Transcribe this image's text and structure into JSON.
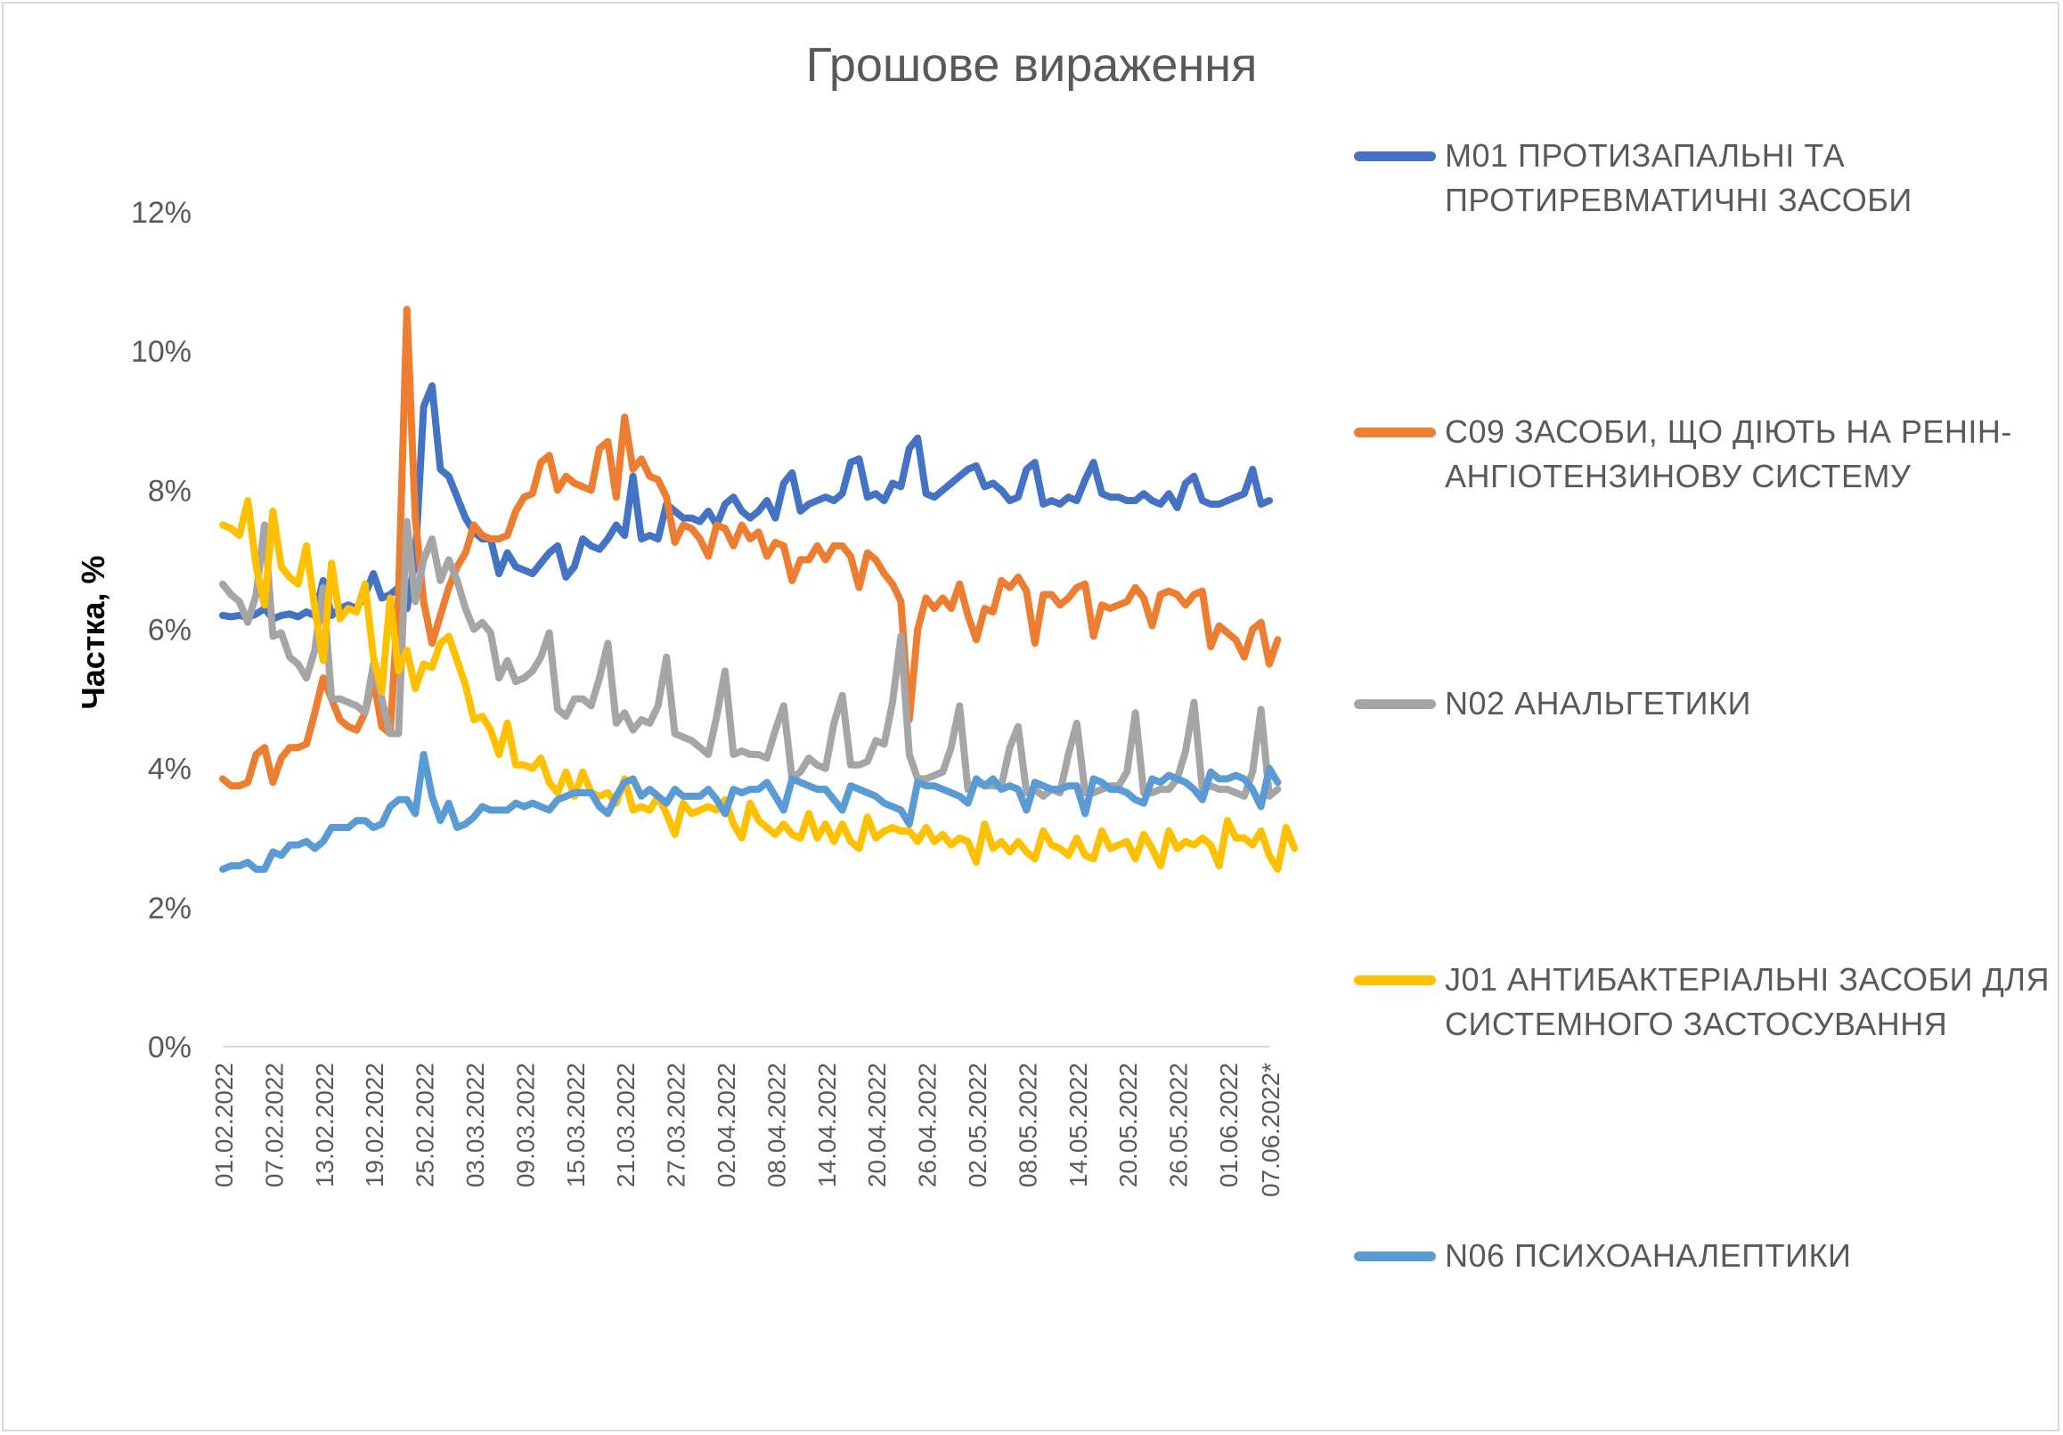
{
  "chart_data": {
    "type": "line",
    "title": "Грошове вираження",
    "ylabel": "Частка, %",
    "xlabel": "",
    "ylim": [
      0,
      12
    ],
    "yticks": [
      "0%",
      "2%",
      "4%",
      "6%",
      "8%",
      "10%",
      "12%"
    ],
    "grid": false,
    "legend_position": "right",
    "x_start": "01.02.2022",
    "x_end": "07.06.2022*",
    "x_tick_labels": [
      "01.02.2022",
      "07.02.2022",
      "13.02.2022",
      "19.02.2022",
      "25.02.2022",
      "03.03.2022",
      "09.03.2022",
      "15.03.2022",
      "21.03.2022",
      "27.03.2022",
      "02.04.2022",
      "08.04.2022",
      "14.04.2022",
      "20.04.2022",
      "26.04.2022",
      "02.05.2022",
      "08.05.2022",
      "14.05.2022",
      "20.05.2022",
      "26.05.2022",
      "01.06.2022",
      "07.06.2022*"
    ],
    "series": [
      {
        "name": "M01 ПРОТИЗАПАЛЬНІ ТА ПРОТИРЕВМАТИЧНІ ЗАСОБИ",
        "color": "#4472C4",
        "values": [
          6.2,
          6.18,
          6.2,
          6.17,
          6.22,
          6.3,
          6.15,
          6.2,
          6.22,
          6.18,
          6.25,
          6.2,
          6.7,
          6.2,
          6.3,
          6.35,
          6.3,
          6.5,
          6.8,
          6.45,
          6.5,
          6.6,
          6.3,
          7.0,
          9.2,
          9.5,
          8.3,
          8.2,
          7.9,
          7.6,
          7.4,
          7.3,
          7.3,
          6.8,
          7.1,
          6.9,
          6.85,
          6.8,
          6.95,
          7.1,
          7.2,
          6.75,
          6.9,
          7.3,
          7.2,
          7.15,
          7.3,
          7.5,
          7.35,
          8.2,
          7.3,
          7.35,
          7.3,
          7.8,
          7.7,
          7.6,
          7.6,
          7.55,
          7.7,
          7.5,
          7.8,
          7.9,
          7.7,
          7.6,
          7.7,
          7.85,
          7.6,
          8.1,
          8.25,
          7.7,
          7.8,
          7.85,
          7.9,
          7.85,
          7.95,
          8.4,
          8.45,
          7.9,
          7.95,
          7.85,
          8.1,
          8.05,
          8.6,
          8.75,
          7.95,
          7.9,
          8.0,
          8.1,
          8.2,
          8.3,
          8.35,
          8.05,
          8.1,
          8.0,
          7.85,
          7.9,
          8.3,
          8.4,
          7.8,
          7.85,
          7.8,
          7.9,
          7.85,
          8.15,
          8.4,
          7.95,
          7.9,
          7.9,
          7.85,
          7.85,
          7.95,
          7.85,
          7.8,
          7.95,
          7.75,
          8.1,
          8.2,
          7.85,
          7.8,
          7.8,
          7.85,
          7.9,
          7.95,
          8.3,
          7.8,
          7.85
        ]
      },
      {
        "name": "C09 ЗАСОБИ, ЩО ДІЮТЬ НА РЕНІН-АНГІОТЕНЗИНОВУ СИСТЕМУ",
        "color": "#ED7D31",
        "values": [
          3.85,
          3.75,
          3.75,
          3.8,
          4.2,
          4.3,
          3.8,
          4.15,
          4.3,
          4.3,
          4.35,
          4.8,
          5.3,
          5.0,
          4.7,
          4.6,
          4.55,
          4.8,
          5.3,
          4.6,
          4.5,
          6.5,
          10.6,
          7.6,
          6.4,
          5.8,
          6.2,
          6.6,
          6.9,
          7.1,
          7.5,
          7.35,
          7.3,
          7.3,
          7.35,
          7.7,
          7.9,
          7.95,
          8.4,
          8.5,
          8.0,
          8.2,
          8.1,
          8.05,
          8.0,
          8.6,
          8.7,
          7.9,
          9.05,
          8.3,
          8.45,
          8.2,
          8.15,
          7.9,
          7.25,
          7.5,
          7.45,
          7.3,
          7.05,
          7.5,
          7.45,
          7.2,
          7.5,
          7.3,
          7.4,
          7.05,
          7.25,
          7.2,
          6.7,
          7.0,
          7.0,
          7.2,
          7.0,
          7.2,
          7.2,
          7.05,
          6.6,
          7.1,
          7.0,
          6.8,
          6.65,
          6.4,
          4.7,
          6.0,
          6.45,
          6.3,
          6.45,
          6.3,
          6.65,
          6.2,
          5.85,
          6.3,
          6.25,
          6.7,
          6.6,
          6.75,
          6.55,
          5.8,
          6.5,
          6.5,
          6.35,
          6.45,
          6.6,
          6.65,
          5.9,
          6.35,
          6.3,
          6.35,
          6.4,
          6.6,
          6.45,
          6.05,
          6.5,
          6.55,
          6.5,
          6.35,
          6.5,
          6.55,
          5.75,
          6.05,
          5.95,
          5.85,
          5.6,
          6.0,
          6.1,
          5.5,
          5.85
        ]
      },
      {
        "name": "N02 АНАЛЬГЕТИКИ",
        "color": "#A5A5A5",
        "values": [
          6.65,
          6.5,
          6.4,
          6.1,
          6.5,
          7.5,
          5.9,
          5.95,
          5.6,
          5.5,
          5.3,
          5.7,
          6.6,
          5.0,
          5.0,
          4.95,
          4.9,
          4.8,
          5.5,
          5.0,
          4.5,
          4.5,
          7.55,
          6.4,
          7.0,
          7.3,
          6.7,
          7.0,
          6.7,
          6.3,
          6.0,
          6.1,
          5.95,
          5.3,
          5.55,
          5.25,
          5.3,
          5.4,
          5.6,
          5.95,
          4.85,
          4.75,
          5.0,
          5.0,
          4.9,
          5.3,
          5.8,
          4.65,
          4.8,
          4.55,
          4.7,
          4.65,
          4.9,
          5.6,
          4.5,
          4.45,
          4.4,
          4.3,
          4.2,
          4.75,
          5.4,
          4.2,
          4.25,
          4.2,
          4.2,
          4.15,
          4.55,
          4.9,
          3.85,
          3.95,
          4.15,
          4.05,
          4.0,
          4.65,
          5.05,
          4.05,
          4.05,
          4.1,
          4.4,
          4.35,
          4.95,
          5.9,
          4.2,
          3.85,
          3.85,
          3.9,
          3.95,
          4.3,
          4.9,
          3.7,
          3.8,
          3.75,
          3.75,
          3.75,
          4.3,
          4.6,
          3.65,
          3.7,
          3.6,
          3.7,
          3.65,
          4.2,
          4.65,
          3.65,
          3.65,
          3.7,
          3.75,
          3.75,
          3.95,
          4.8,
          3.65,
          3.65,
          3.7,
          3.7,
          3.85,
          4.25,
          4.95,
          3.7,
          3.75,
          3.7,
          3.7,
          3.65,
          3.6,
          3.95,
          4.85,
          3.6,
          3.7
        ]
      },
      {
        "name": "J01 АНТИБАКТЕРІАЛЬНІ ЗАСОБИ ДЛЯ СИСТЕМНОГО ЗАСТОСУВАННЯ",
        "color": "#FFC000",
        "values": [
          7.5,
          7.45,
          7.35,
          7.85,
          6.9,
          6.35,
          7.7,
          6.9,
          6.75,
          6.65,
          7.2,
          6.3,
          5.55,
          6.95,
          6.15,
          6.3,
          6.25,
          6.65,
          5.6,
          5.1,
          6.45,
          5.4,
          5.7,
          5.15,
          5.5,
          5.45,
          5.8,
          5.9,
          5.55,
          5.2,
          4.7,
          4.75,
          4.55,
          4.2,
          4.65,
          4.05,
          4.05,
          4.0,
          4.15,
          3.8,
          3.65,
          3.95,
          3.6,
          3.95,
          3.65,
          3.6,
          3.65,
          3.5,
          3.85,
          3.4,
          3.45,
          3.4,
          3.6,
          3.35,
          3.05,
          3.5,
          3.35,
          3.4,
          3.45,
          3.4,
          3.55,
          3.2,
          3.0,
          3.5,
          3.25,
          3.15,
          3.05,
          3.2,
          3.05,
          3.0,
          3.35,
          3.0,
          3.2,
          2.95,
          3.2,
          2.95,
          2.85,
          3.3,
          3.0,
          3.1,
          3.15,
          3.1,
          3.1,
          2.95,
          3.15,
          2.95,
          3.05,
          2.9,
          3.0,
          2.95,
          2.65,
          3.2,
          2.85,
          2.95,
          2.8,
          2.95,
          2.8,
          2.7,
          3.1,
          2.9,
          2.85,
          2.75,
          3.0,
          2.75,
          2.7,
          3.1,
          2.85,
          2.9,
          2.95,
          2.7,
          3.05,
          2.85,
          2.6,
          3.1,
          2.85,
          2.95,
          2.9,
          3.0,
          2.9,
          2.6,
          3.25,
          3.0,
          3.0,
          2.9,
          3.1,
          2.75,
          2.55,
          3.15,
          2.85
        ]
      },
      {
        "name": "N06 ПСИХОАНАЛЕПТИКИ",
        "color": "#5B9BD5",
        "values": [
          2.55,
          2.6,
          2.6,
          2.65,
          2.55,
          2.55,
          2.8,
          2.75,
          2.9,
          2.9,
          2.95,
          2.85,
          2.95,
          3.15,
          3.15,
          3.15,
          3.25,
          3.25,
          3.15,
          3.2,
          3.45,
          3.55,
          3.55,
          3.35,
          4.2,
          3.6,
          3.25,
          3.5,
          3.15,
          3.2,
          3.3,
          3.45,
          3.4,
          3.4,
          3.4,
          3.5,
          3.45,
          3.5,
          3.45,
          3.4,
          3.55,
          3.6,
          3.65,
          3.65,
          3.65,
          3.45,
          3.35,
          3.6,
          3.8,
          3.85,
          3.6,
          3.7,
          3.6,
          3.5,
          3.7,
          3.6,
          3.6,
          3.6,
          3.7,
          3.55,
          3.35,
          3.7,
          3.65,
          3.7,
          3.7,
          3.8,
          3.6,
          3.4,
          3.85,
          3.8,
          3.75,
          3.7,
          3.7,
          3.55,
          3.4,
          3.75,
          3.7,
          3.65,
          3.6,
          3.5,
          3.45,
          3.4,
          3.2,
          3.8,
          3.75,
          3.75,
          3.7,
          3.65,
          3.6,
          3.5,
          3.85,
          3.75,
          3.85,
          3.7,
          3.75,
          3.7,
          3.4,
          3.8,
          3.75,
          3.7,
          3.7,
          3.75,
          3.75,
          3.35,
          3.85,
          3.8,
          3.7,
          3.7,
          3.65,
          3.55,
          3.5,
          3.85,
          3.8,
          3.9,
          3.85,
          3.8,
          3.7,
          3.55,
          3.95,
          3.85,
          3.85,
          3.9,
          3.85,
          3.7,
          3.45,
          4.0,
          3.8
        ]
      }
    ]
  }
}
